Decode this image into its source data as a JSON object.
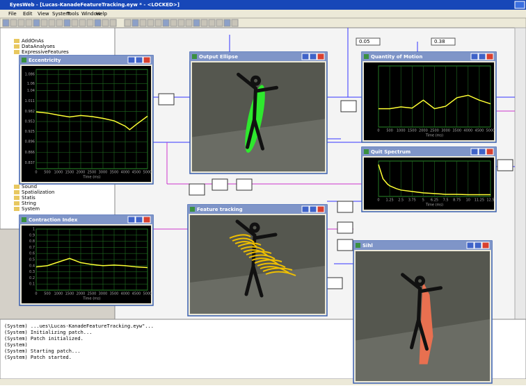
{
  "title_bar": "EyesWeb - [Lucas-KanadeFeatureTracking.eyw * - <LOCKED>]",
  "menu": [
    "File",
    "Edit",
    "View",
    "System",
    "Tools",
    "Window",
    "Help"
  ],
  "tree": [
    "AddOnAs",
    "DataAnalyses",
    "ExpressiveFeatures",
    "Sound",
    "Spatialization",
    "Statis",
    "String",
    "System"
  ],
  "fields": [
    "0.05",
    "0.38"
  ],
  "plots": [
    {
      "type": "line",
      "title": "Eccentricity",
      "xlabel": "Time (ms)",
      "color": "#ffff33",
      "x": [
        0,
        500,
        1000,
        1500,
        2000,
        2500,
        3000,
        3500,
        4000,
        4200,
        4500,
        5000
      ],
      "values": [
        0.98,
        0.977,
        0.971,
        0.966,
        0.97,
        0.967,
        0.962,
        0.955,
        0.94,
        0.93,
        0.945,
        0.968
      ],
      "xlim": [
        0,
        5000
      ],
      "ylim": [
        0.82,
        1.1
      ],
      "xticks": [
        0,
        500,
        1000,
        1500,
        2000,
        2500,
        3000,
        3500,
        4000,
        4500,
        5000
      ],
      "yticks": [
        0.837,
        0.866,
        0.896,
        0.925,
        0.953,
        0.982,
        1.011,
        1.04,
        1.06,
        1.086
      ]
    },
    {
      "type": "line",
      "title": "Quantity of Motion",
      "xlabel": "Time (ms)",
      "color": "#ffff33",
      "x": [
        0,
        500,
        1000,
        1500,
        2000,
        2500,
        3000,
        3500,
        4000,
        4500,
        5000
      ],
      "values": [
        0.3,
        0.3,
        0.33,
        0.31,
        0.44,
        0.3,
        0.34,
        0.48,
        0.52,
        0.44,
        0.38
      ],
      "xlim": [
        0,
        5000
      ],
      "ylim": [
        0,
        1
      ],
      "xticks": [
        0,
        500,
        1000,
        1500,
        2000,
        2500,
        3000,
        3500,
        4000,
        4500,
        5000
      ]
    },
    {
      "type": "line",
      "title": "Quit Spectrum",
      "xlabel": "Time (ms)",
      "color": "#ffff33",
      "x": [
        0,
        0.5,
        1,
        1.25,
        2,
        2.5,
        3.75,
        5,
        6.25,
        7.5,
        8.75,
        10,
        11.25,
        12.5
      ],
      "values": [
        0.9,
        0.5,
        0.35,
        0.3,
        0.22,
        0.18,
        0.14,
        0.1,
        0.08,
        0.06,
        0.06,
        0.05,
        0.05,
        0.05
      ],
      "xlim": [
        0,
        12.5
      ],
      "ylim": [
        0,
        1
      ],
      "xticks": [
        0,
        1.25,
        2.5,
        3.75,
        5,
        6.25,
        7.5,
        8.75,
        10,
        11.25,
        12.5
      ]
    },
    {
      "type": "line",
      "title": "Contraction Index",
      "xlabel": "Time (ms)",
      "color": "#ffff33",
      "x": [
        0,
        500,
        1000,
        1500,
        2000,
        2500,
        3000,
        3500,
        4000,
        4500,
        5000
      ],
      "values": [
        0.38,
        0.4,
        0.46,
        0.52,
        0.45,
        0.42,
        0.4,
        0.41,
        0.4,
        0.38,
        0.37
      ],
      "xlim": [
        0,
        5000
      ],
      "ylim": [
        0,
        1
      ],
      "xticks": [
        0,
        500,
        1000,
        1500,
        2000,
        2500,
        3000,
        3500,
        4000,
        4500,
        5000
      ],
      "yticks": [
        0.1,
        0.2,
        0.3,
        0.4,
        0.5,
        0.6,
        0.7,
        0.8,
        0.9,
        1
      ]
    }
  ],
  "video_windows": [
    {
      "title": "Output Ellipse"
    },
    {
      "title": "Feature tracking"
    },
    {
      "title": "Sihl"
    }
  ],
  "console": [
    "(System)  ...ues\\Lucas-KanadeFeatureTracking.eyw\"...",
    "(System)  Initializing patch...",
    "(System)  Patch initialized.",
    "(System)",
    "(System)  Starting patch...",
    "(System)  Patch started."
  ]
}
